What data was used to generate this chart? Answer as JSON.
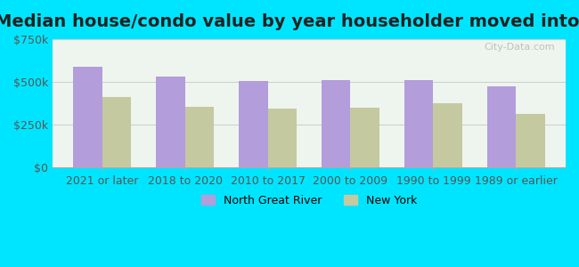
{
  "title": "Median house/condo value by year householder moved into unit",
  "categories": [
    "2021 or later",
    "2018 to 2020",
    "2010 to 2017",
    "2000 to 2009",
    "1990 to 1999",
    "1989 or earlier"
  ],
  "north_great_river": [
    590000,
    530000,
    505000,
    510000,
    510000,
    475000
  ],
  "new_york": [
    410000,
    355000,
    345000,
    350000,
    375000,
    315000
  ],
  "bar_color_ngr": "#b39ddb",
  "bar_color_ny": "#c5c9a0",
  "background_color": "#00e5ff",
  "plot_bg_start": "#e8f5e9",
  "plot_bg_end": "#ffffff",
  "ylim": [
    0,
    750000
  ],
  "yticks": [
    0,
    250000,
    500000,
    750000
  ],
  "ytick_labels": [
    "$0",
    "$250k",
    "$500k",
    "$750k"
  ],
  "legend_ngr": "North Great River",
  "legend_ny": "New York",
  "title_fontsize": 14,
  "tick_fontsize": 9,
  "legend_fontsize": 9,
  "bar_width": 0.35
}
